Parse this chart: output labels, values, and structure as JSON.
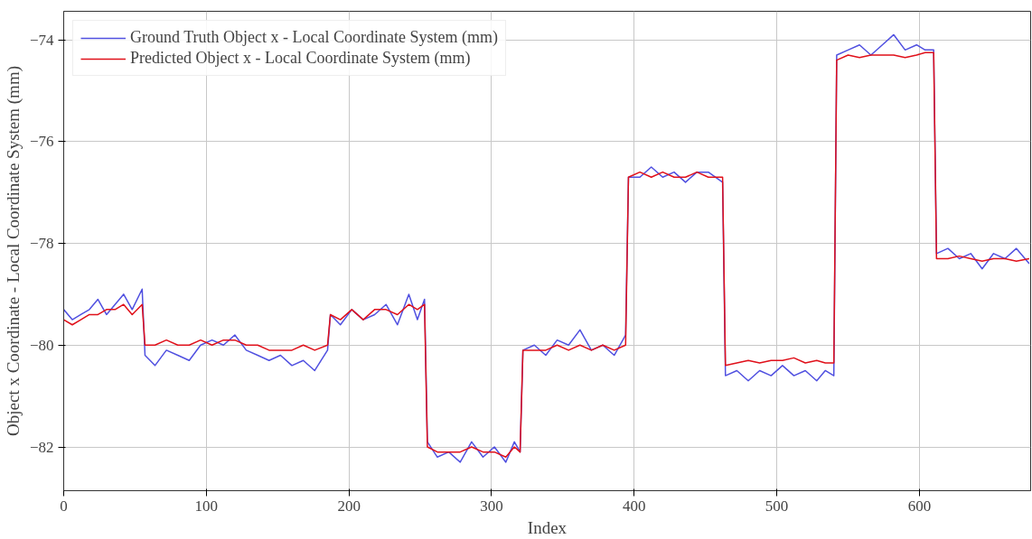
{
  "chart_data": {
    "type": "line",
    "xlabel": "Index",
    "ylabel": "Object x Coordinate - Local Coordinate System (mm)",
    "x": [
      0,
      6,
      12,
      18,
      24,
      30,
      36,
      42,
      48,
      55,
      57,
      64,
      72,
      80,
      88,
      96,
      104,
      112,
      120,
      128,
      136,
      144,
      152,
      160,
      168,
      176,
      185,
      187,
      194,
      202,
      210,
      218,
      226,
      234,
      242,
      248,
      253,
      255,
      262,
      270,
      278,
      286,
      294,
      302,
      310,
      316,
      320,
      322,
      330,
      338,
      346,
      354,
      362,
      370,
      378,
      386,
      394,
      396,
      404,
      412,
      420,
      428,
      436,
      444,
      452,
      462,
      464,
      472,
      480,
      488,
      496,
      504,
      512,
      520,
      528,
      534,
      540,
      542,
      550,
      558,
      566,
      574,
      582,
      590,
      598,
      604,
      610,
      612,
      620,
      628,
      636,
      644,
      652,
      660,
      668,
      677
    ],
    "series": [
      {
        "name": "Ground Truth Object x - Local Coordinate System (mm)",
        "color": "#5050e0",
        "values": [
          -79.3,
          -79.5,
          -79.4,
          -79.3,
          -79.1,
          -79.4,
          -79.2,
          -79.0,
          -79.3,
          -78.9,
          -80.2,
          -80.4,
          -80.1,
          -80.2,
          -80.3,
          -80.0,
          -79.9,
          -80.0,
          -79.8,
          -80.1,
          -80.2,
          -80.3,
          -80.2,
          -80.4,
          -80.3,
          -80.5,
          -80.1,
          -79.4,
          -79.6,
          -79.3,
          -79.5,
          -79.4,
          -79.2,
          -79.6,
          -79.0,
          -79.5,
          -79.1,
          -81.9,
          -82.2,
          -82.1,
          -82.3,
          -81.9,
          -82.2,
          -82.0,
          -82.3,
          -81.9,
          -82.1,
          -80.1,
          -80.0,
          -80.2,
          -79.9,
          -80.0,
          -79.7,
          -80.1,
          -80.0,
          -80.2,
          -79.8,
          -76.7,
          -76.7,
          -76.5,
          -76.7,
          -76.6,
          -76.8,
          -76.6,
          -76.6,
          -76.8,
          -80.6,
          -80.5,
          -80.7,
          -80.5,
          -80.6,
          -80.4,
          -80.6,
          -80.5,
          -80.7,
          -80.5,
          -80.6,
          -74.3,
          -74.2,
          -74.1,
          -74.3,
          -74.1,
          -73.9,
          -74.2,
          -74.1,
          -74.2,
          -74.2,
          -78.2,
          -78.1,
          -78.3,
          -78.2,
          -78.5,
          -78.2,
          -78.3,
          -78.1,
          -78.4
        ]
      },
      {
        "name": "Predicted Object x - Local Coordinate System (mm)",
        "color": "#e0101a",
        "values": [
          -79.5,
          -79.6,
          -79.5,
          -79.4,
          -79.4,
          -79.3,
          -79.3,
          -79.2,
          -79.4,
          -79.2,
          -80.0,
          -80.0,
          -79.9,
          -80.0,
          -80.0,
          -79.9,
          -80.0,
          -79.9,
          -79.9,
          -80.0,
          -80.0,
          -80.1,
          -80.1,
          -80.1,
          -80.0,
          -80.1,
          -80.0,
          -79.4,
          -79.5,
          -79.3,
          -79.5,
          -79.3,
          -79.3,
          -79.4,
          -79.2,
          -79.3,
          -79.2,
          -82.0,
          -82.1,
          -82.1,
          -82.1,
          -82.0,
          -82.1,
          -82.1,
          -82.2,
          -82.0,
          -82.1,
          -80.1,
          -80.1,
          -80.1,
          -80.0,
          -80.1,
          -80.0,
          -80.1,
          -80.0,
          -80.1,
          -80.0,
          -76.7,
          -76.6,
          -76.7,
          -76.6,
          -76.7,
          -76.7,
          -76.6,
          -76.7,
          -76.7,
          -80.4,
          -80.35,
          -80.3,
          -80.35,
          -80.3,
          -80.3,
          -80.25,
          -80.35,
          -80.3,
          -80.35,
          -80.35,
          -74.4,
          -74.3,
          -74.35,
          -74.3,
          -74.3,
          -74.3,
          -74.35,
          -74.3,
          -74.25,
          -74.25,
          -78.3,
          -78.3,
          -78.25,
          -78.3,
          -78.35,
          -78.3,
          -78.3,
          -78.35,
          -78.3
        ]
      }
    ],
    "xlim": [
      0,
      678
    ],
    "ylim": [
      -82.86,
      -73.44
    ],
    "xticks": [
      0,
      100,
      200,
      300,
      400,
      500,
      600
    ],
    "yticks": [
      {
        "value": -82,
        "label": "−82"
      },
      {
        "value": -80,
        "label": "−80"
      },
      {
        "value": -78,
        "label": "−78"
      },
      {
        "value": -76,
        "label": "−76"
      },
      {
        "value": -74,
        "label": "−74"
      }
    ],
    "grid": true,
    "legend": "top left",
    "line_style": "solid",
    "marker": "none"
  }
}
